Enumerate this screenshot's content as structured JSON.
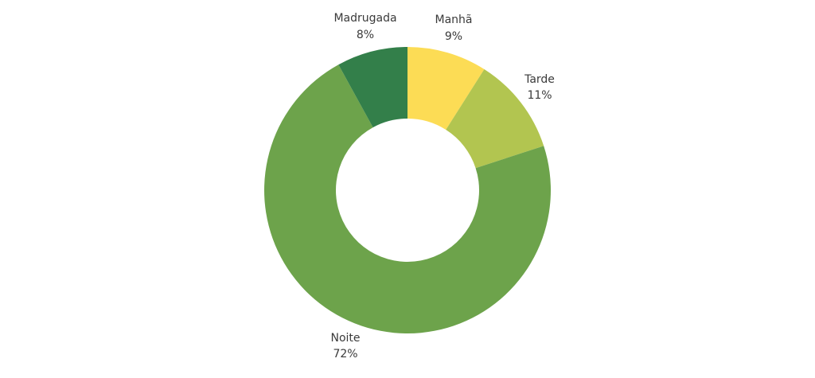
{
  "chart_data": {
    "type": "pie",
    "variant": "donut",
    "title": "",
    "legend": "none",
    "slices": [
      {
        "name": "Manhã",
        "value": 9,
        "label": "9%",
        "color": "#FCDC55"
      },
      {
        "name": "Tarde",
        "value": 11,
        "label": "11%",
        "color": "#B2C550"
      },
      {
        "name": "Noite",
        "value": 72,
        "label": "72%",
        "color": "#6DA34B"
      },
      {
        "name": "Madrugada",
        "value": 8,
        "label": "8%",
        "color": "#337F4A"
      }
    ]
  }
}
